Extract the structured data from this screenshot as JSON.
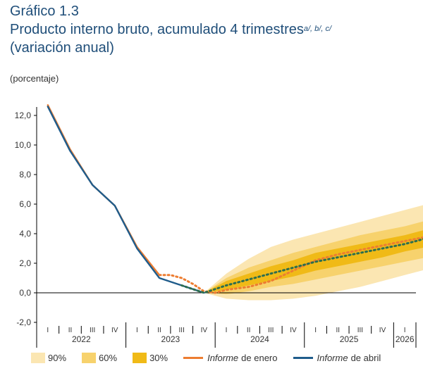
{
  "header": {
    "number": "Gráfico 1.3",
    "title": "Producto interno bruto, acumulado 4 trimestres",
    "footnotes": "a/, b/, c/",
    "subtitle": "(variación anual)",
    "unit": "(porcentaje)"
  },
  "colors": {
    "band90": "#fbe6b2",
    "band60": "#f7d26d",
    "band30": "#f0ba17",
    "enero": "#ed7d31",
    "abril": "#1f5c8b",
    "dotted": "#2e6e4e",
    "axis": "#000000",
    "text": "#333333"
  },
  "legend": {
    "b90": "90%",
    "b60": "60%",
    "b30": "30%",
    "enero_italic": "Informe",
    "enero_rest": "de enero",
    "abril_italic": "Informe",
    "abril_rest": "de abril"
  },
  "chart_data": {
    "type": "line",
    "title": "Producto interno bruto, acumulado 4 trimestres",
    "ylabel": "(porcentaje)",
    "ylim": [
      -2,
      12
    ],
    "yticks": [
      12.0,
      10.0,
      8.0,
      6.0,
      4.0,
      2.0,
      0.0,
      -2.0
    ],
    "ytick_labels": [
      "12,0",
      "10,0",
      "8,0",
      "6,0",
      "4,0",
      "2,0",
      "0,0",
      "-2,0"
    ],
    "quarters": [
      "I",
      "II",
      "III",
      "IV",
      "I",
      "II",
      "III",
      "IV",
      "I",
      "II",
      "III",
      "IV",
      "I",
      "II",
      "III",
      "IV",
      "I"
    ],
    "years": [
      {
        "label": "2022",
        "start": 0,
        "end": 4
      },
      {
        "label": "2023",
        "start": 4,
        "end": 8
      },
      {
        "label": "2024",
        "start": 8,
        "end": 12
      },
      {
        "label": "2025",
        "start": 12,
        "end": 16
      },
      {
        "label": "2026",
        "start": 16,
        "end": 17
      }
    ],
    "series": [
      {
        "name": "Informe de abril",
        "style": "solid",
        "x": [
          0,
          1,
          2,
          3,
          4,
          5,
          6,
          7
        ],
        "values": [
          12.6,
          9.6,
          7.3,
          5.9,
          3.0,
          1.0,
          0.5,
          0.0
        ]
      },
      {
        "name": "Informe de enero",
        "style": "solid",
        "x": [
          0,
          1,
          2,
          3,
          4,
          5
        ],
        "values": [
          12.7,
          9.7,
          7.3,
          5.9,
          3.1,
          1.2
        ]
      },
      {
        "name": "Informe de enero (proyección)",
        "style": "dotted",
        "x": [
          5,
          5.5,
          6,
          6.5,
          7,
          7.5,
          8,
          9,
          10,
          11,
          12,
          13,
          14,
          15,
          16,
          17
        ],
        "values": [
          1.2,
          1.2,
          1.0,
          0.6,
          0.1,
          0.0,
          0.2,
          0.4,
          0.8,
          1.5,
          2.2,
          2.6,
          2.9,
          3.2,
          3.5,
          3.8
        ]
      },
      {
        "name": "Informe de abril (proyección)",
        "style": "dotted",
        "x": [
          6,
          7,
          8,
          9,
          10,
          11,
          12,
          13,
          14,
          15,
          16,
          17
        ],
        "values": [
          0.5,
          0.0,
          0.5,
          0.9,
          1.3,
          1.7,
          2.1,
          2.4,
          2.7,
          3.0,
          3.3,
          3.7
        ]
      }
    ],
    "fan": {
      "x": [
        7,
        8,
        9,
        10,
        11,
        12,
        13,
        14,
        15,
        16,
        17
      ],
      "center": [
        0.0,
        0.5,
        0.9,
        1.3,
        1.7,
        2.1,
        2.4,
        2.7,
        3.0,
        3.3,
        3.7
      ],
      "bands": [
        {
          "name": "90%",
          "lower": [
            0.0,
            -0.4,
            -0.5,
            -0.5,
            -0.4,
            -0.2,
            0.1,
            0.4,
            0.8,
            1.2,
            1.6
          ],
          "upper": [
            0.0,
            1.3,
            2.3,
            3.1,
            3.6,
            4.0,
            4.4,
            4.8,
            5.2,
            5.6,
            6.0
          ]
        },
        {
          "name": "60%",
          "lower": [
            0.0,
            -0.1,
            0.1,
            0.4,
            0.6,
            0.9,
            1.2,
            1.5,
            1.8,
            2.1,
            2.4
          ],
          "upper": [
            0.0,
            1.0,
            1.7,
            2.2,
            2.7,
            3.1,
            3.5,
            3.9,
            4.2,
            4.5,
            4.9
          ]
        },
        {
          "name": "30%",
          "lower": [
            0.0,
            0.2,
            0.5,
            0.8,
            1.1,
            1.5,
            1.8,
            2.1,
            2.4,
            2.8,
            3.1
          ],
          "upper": [
            0.0,
            0.8,
            1.3,
            1.8,
            2.2,
            2.7,
            3.0,
            3.3,
            3.6,
            3.9,
            4.3
          ]
        }
      ]
    }
  }
}
